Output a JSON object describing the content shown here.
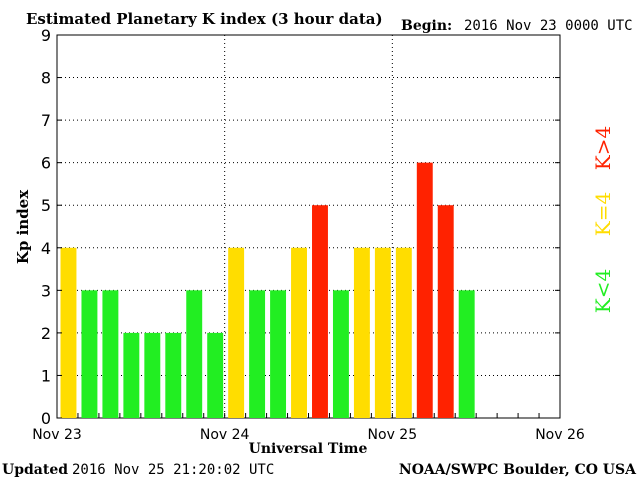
{
  "header": {
    "title": "Estimated Planetary K index (3 hour data)",
    "begin_label": "Begin:",
    "begin_value": "2016 Nov 23 0000 UTC"
  },
  "footer": {
    "updated_label": "Updated",
    "updated_value": "2016 Nov 25 21:20:02 UTC",
    "source": "NOAA/SWPC Boulder, CO USA"
  },
  "legend": {
    "high": "K>4",
    "mid": "K=4",
    "low": "K<4"
  },
  "colors": {
    "low": "#22ee22",
    "mid": "#ffdd00",
    "high": "#ff2200",
    "grid": "#000000"
  },
  "chart_data": {
    "type": "bar",
    "title": "Estimated Planetary K index (3 hour data)",
    "xlabel": "Universal Time",
    "ylabel": "Kp index",
    "ylim": [
      0,
      9
    ],
    "yticks": [
      "0",
      "1",
      "2",
      "3",
      "4",
      "5",
      "6",
      "7",
      "8",
      "9"
    ],
    "x_tick_labels": [
      "Nov 23",
      "Nov 24",
      "Nov 25",
      "Nov 26"
    ],
    "interval_hours": 3,
    "values": [
      4,
      3,
      3,
      2,
      2,
      2,
      3,
      2,
      4,
      3,
      3,
      4,
      5,
      3,
      4,
      4,
      4,
      6,
      5,
      3
    ],
    "grid": "dotted",
    "legend_placement": "right"
  }
}
